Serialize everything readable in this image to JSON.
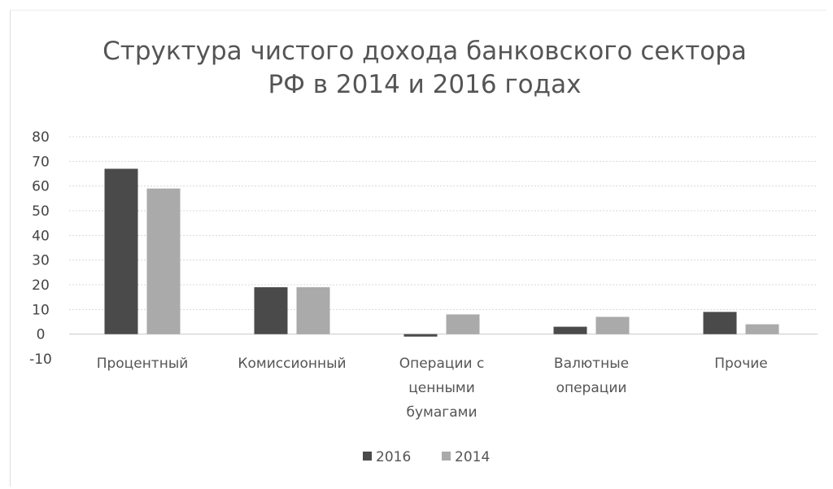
{
  "chart_data": {
    "type": "bar",
    "title": "Структура чистого дохода банковского сектора РФ в 2014 и 2016 годах",
    "title_lines": [
      "Структура чистого дохода банковского сектора",
      "РФ в 2014 и 2016 годах"
    ],
    "categories": [
      "Процентный",
      "Комиссионный",
      "Операции с ценными бумагами",
      "Валютные операции",
      "Прочие"
    ],
    "category_lines": [
      [
        "Процентный"
      ],
      [
        "Комиссионный"
      ],
      [
        "Операции с",
        "ценными",
        "бумагами"
      ],
      [
        "Валютные",
        "операции"
      ],
      [
        "Прочие"
      ]
    ],
    "series": [
      {
        "name": "2016",
        "color": "#4a4a4a",
        "values": [
          67,
          19,
          -1,
          3,
          9
        ]
      },
      {
        "name": "2014",
        "color": "#aaaaaa",
        "values": [
          59,
          19,
          8,
          7,
          4
        ]
      }
    ],
    "ylim": [
      -10,
      80
    ],
    "yticks": [
      80,
      70,
      60,
      50,
      40,
      30,
      20,
      10,
      0,
      -10
    ],
    "xlabel": "",
    "ylabel": "",
    "grid": true,
    "legend_position": "bottom"
  }
}
